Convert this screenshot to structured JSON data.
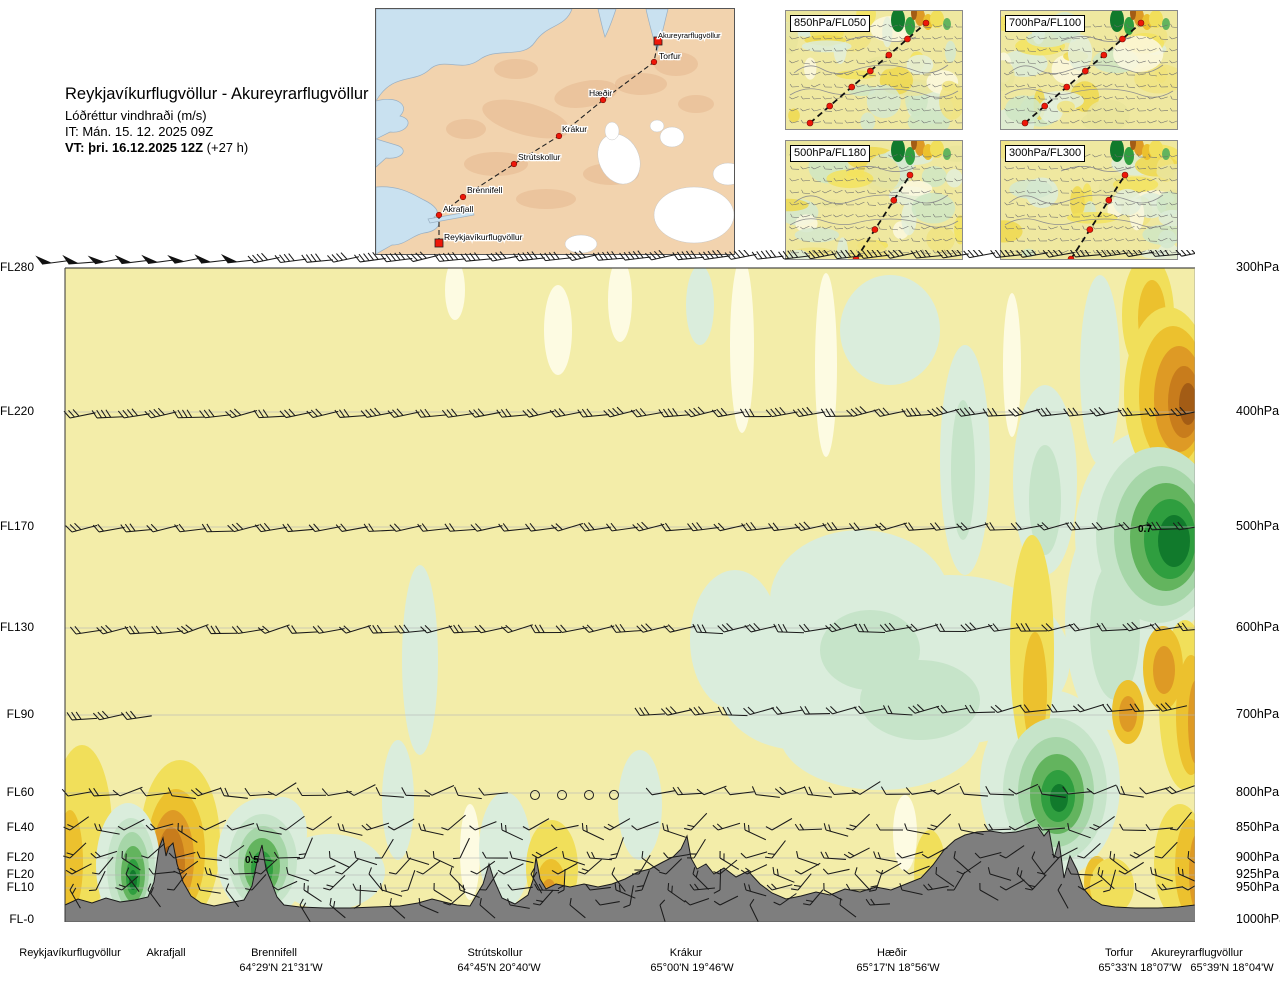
{
  "header": {
    "title": "Reykjavíkurflugvöllur - Akureyrarflugvöllur",
    "subtitle": "Lóðréttur vindhraði (m/s)",
    "init_time": "IT: Mán. 15. 12. 2025 09Z",
    "valid_time_bold": "VT: þri. 16.12.2025 12Z",
    "valid_time_offset": " (+27 h)"
  },
  "route_map": {
    "waypoints": [
      "Reykjavíkurflugvöllur",
      "Akrafjall",
      "Brennifell",
      "Strútskollur",
      "Krákur",
      "Hæðir",
      "Torfur",
      "Akureyrarflugvöllur"
    ]
  },
  "panels": [
    {
      "label": "850hPa/FL050"
    },
    {
      "label": "700hPa/FL100"
    },
    {
      "label": "500hPa/FL180"
    },
    {
      "label": "300hPa/FL300"
    }
  ],
  "cross_section": {
    "left_axis": [
      "FL280",
      "FL220",
      "FL170",
      "FL130",
      "FL90",
      "FL60",
      "FL40",
      "FL20",
      "FL20",
      "FL10",
      "FL-0"
    ],
    "right_axis": [
      "300hPa",
      "400hPa",
      "500hPa",
      "600hPa",
      "700hPa",
      "800hPa",
      "850hPa",
      "900hPa",
      "925hPa",
      "950hPa",
      "1000hPa"
    ],
    "contour_labels": [
      {
        "value": "0.5"
      },
      {
        "value": "0.7"
      }
    ],
    "bottom_axis": [
      {
        "name": "Reykjavíkurflugvöllur",
        "coords": ""
      },
      {
        "name": "Akrafjall",
        "coords": ""
      },
      {
        "name": "Brennifell",
        "coords": "64°29'N 21°31'W"
      },
      {
        "name": "Strútskollur",
        "coords": "64°45'N 20°40'W"
      },
      {
        "name": "Krákur",
        "coords": "65°00'N 19°46'W"
      },
      {
        "name": "Hæðir",
        "coords": "65°17'N 18°56'W"
      },
      {
        "name": "Torfur",
        "coords": "65°33'N 18°07'W"
      },
      {
        "name": "Akureyrarflugvöllur",
        "coords": "65°39'N 18°04'W"
      }
    ]
  },
  "chart_data": {
    "type": "heatmap",
    "title": "Lóðréttur vindhraði (m/s) — vertical cross-section along route Reykjavíkurflugvöllur til Akureyrarflugvöllur",
    "x_waypoints": [
      "Reykjavíkurflugvöllur",
      "Akrafjall",
      "Brennifell",
      "Strútskollur",
      "Krákur",
      "Hæðir",
      "Torfur",
      "Akureyrarflugvöllur"
    ],
    "x_waypoint_coords": [
      "",
      "",
      "64°29'N 21°31'W",
      "64°45'N 20°40'W",
      "65°00'N 19°46'W",
      "65°17'N 18°56'W",
      "65°33'N 18°07'W",
      "65°39'N 18°04'W"
    ],
    "y_axis_left_flight_levels": [
      "FL-0",
      "FL10",
      "FL20",
      "FL20",
      "FL40",
      "FL60",
      "FL90",
      "FL130",
      "FL170",
      "FL220",
      "FL280"
    ],
    "y_axis_right_pressure_hpa": [
      1000,
      950,
      925,
      900,
      850,
      800,
      700,
      600,
      500,
      400,
      300
    ],
    "labeled_contours": [
      {
        "value": 0.5,
        "x_near": "Brennifell",
        "level": "~FL20 / 900hPa"
      },
      {
        "value": 0.7,
        "x_near": "Torfur",
        "level": "~FL170 / 500hPa"
      }
    ],
    "shading": {
      "green_scale": [
        "#daeddc",
        "#a6d6a8",
        "#63b45e",
        "#2f9e3f",
        "#117a2c"
      ],
      "orange_scale": [
        "#f1df5a",
        "#ecc12e",
        "#de9a25",
        "#c87c1c",
        "#a35c15"
      ],
      "background_near_zero": "#f3eda9",
      "terrain_fill": "#7e7e7e"
    },
    "notable_cells": [
      {
        "kind": "green maximum",
        "value_hint": 0.5,
        "near": "Brennifell",
        "level": "FL10–FL40"
      },
      {
        "kind": "green maximum",
        "near": "west of Akrafjall",
        "level": "FL10–FL30"
      },
      {
        "kind": "orange minimum",
        "near": "Akrafjall",
        "level": "FL10–FL40"
      },
      {
        "kind": "orange minimum",
        "near": "Torfur–Akureyri",
        "level": "400hPa"
      },
      {
        "kind": "green maximum",
        "value_hint": 0.7,
        "near": "Torfur",
        "level": "500hPa"
      },
      {
        "kind": "green maximum",
        "near": "Hæðir–Torfur",
        "level": "FL60"
      },
      {
        "kind": "orange minimum",
        "near": "Akureyrarflugvöllur",
        "level": "850–1000hPa"
      }
    ],
    "wind": "wind barbs plotted along each pressure level; calm circles near 800hPa mid-route"
  }
}
